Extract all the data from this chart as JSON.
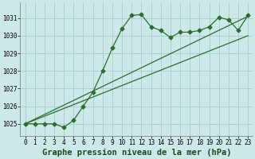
{
  "title": "Graphe pression niveau de la mer (hPa)",
  "background_color": "#cce8e8",
  "grid_color": "#aacccc",
  "line_color": "#2d6e2d",
  "xlim": [
    -0.5,
    23.5
  ],
  "ylim": [
    1024.3,
    1031.9
  ],
  "yticks": [
    1025,
    1026,
    1027,
    1028,
    1029,
    1030,
    1031
  ],
  "xticks": [
    0,
    1,
    2,
    3,
    4,
    5,
    6,
    7,
    8,
    9,
    10,
    11,
    12,
    13,
    14,
    15,
    16,
    17,
    18,
    19,
    20,
    21,
    22,
    23
  ],
  "series1_x": [
    0,
    1,
    2,
    3,
    4,
    5,
    6,
    7,
    8,
    9,
    10,
    11,
    12,
    13,
    14,
    15,
    16,
    17,
    18,
    19,
    20,
    21,
    22,
    23
  ],
  "series1_y": [
    1025.0,
    1025.0,
    1025.0,
    1025.0,
    1024.8,
    1025.2,
    1026.0,
    1026.8,
    1028.0,
    1029.3,
    1030.4,
    1031.15,
    1031.2,
    1030.5,
    1030.3,
    1029.9,
    1030.2,
    1030.2,
    1030.3,
    1030.5,
    1031.05,
    1030.9,
    1030.3,
    1031.15
  ],
  "series2_x": [
    0,
    23
  ],
  "series2_y": [
    1025.0,
    1031.1
  ],
  "series3_x": [
    0,
    23
  ],
  "series3_y": [
    1025.0,
    1030.0
  ],
  "markersize": 2.5,
  "linewidth": 0.9,
  "title_fontsize": 7.5,
  "tick_fontsize": 5.5
}
